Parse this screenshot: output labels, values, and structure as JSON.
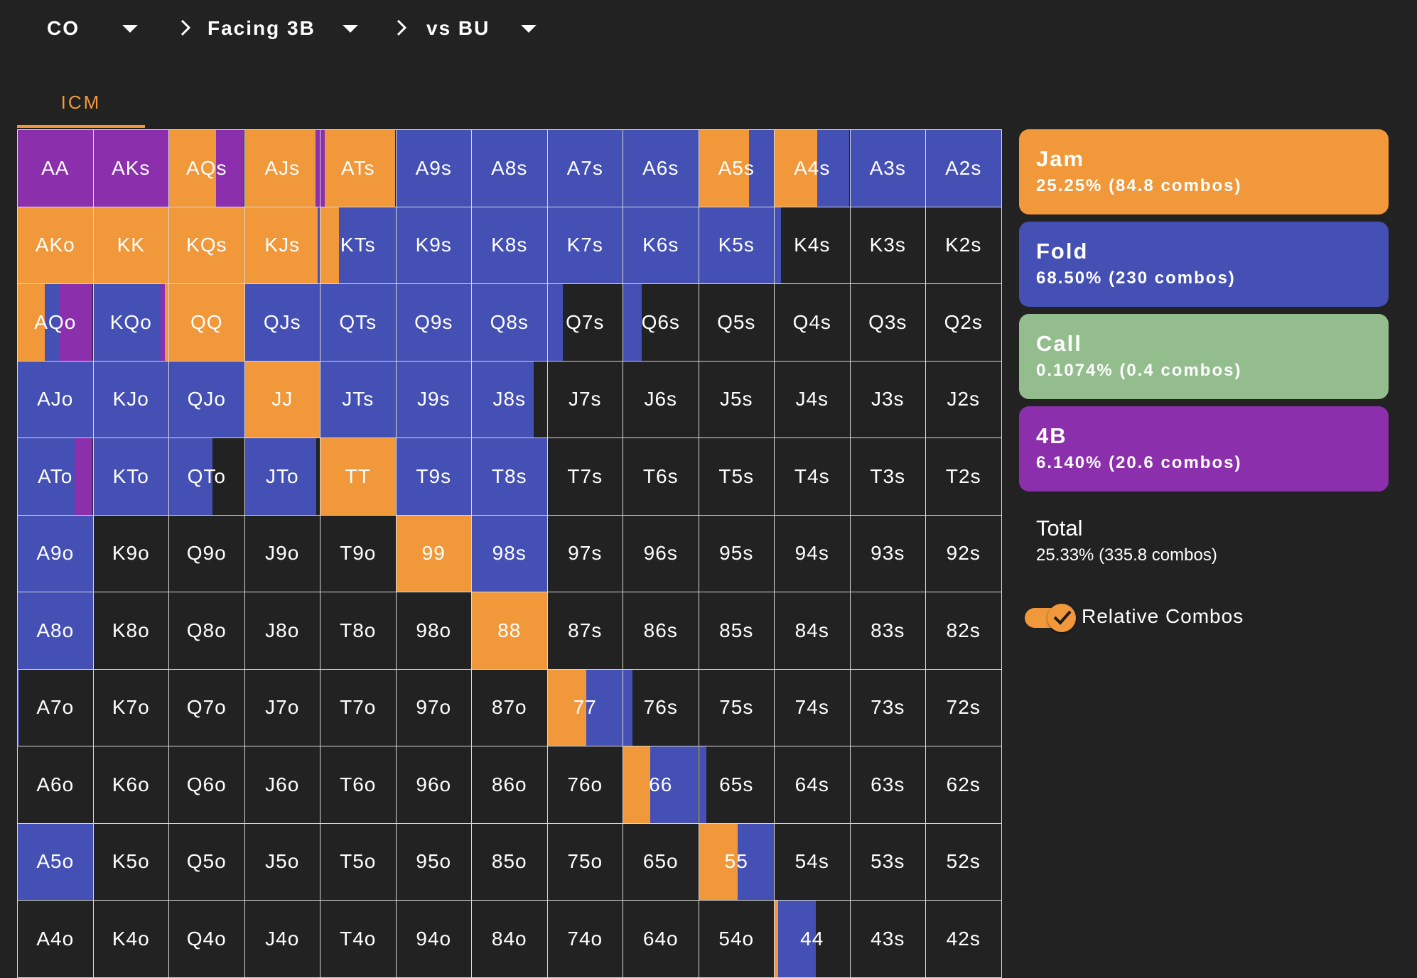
{
  "breadcrumb": [
    {
      "label": "CO"
    },
    {
      "label": "Facing 3B"
    },
    {
      "label": "vs BU"
    }
  ],
  "tabs": [
    {
      "label": "ICM",
      "active": true
    }
  ],
  "colors": {
    "jam": "#f0983a",
    "fold": "#4450b4",
    "call": "#94bd8e",
    "four_bet": "#8c2fad",
    "empty": "#222222"
  },
  "legend": [
    {
      "key": "jam",
      "name": "Jam",
      "stats": "25.25% (84.8 combos)"
    },
    {
      "key": "fold",
      "name": "Fold",
      "stats": "68.50% (230 combos)"
    },
    {
      "key": "call",
      "name": "Call",
      "stats": "0.1074% (0.4 combos)"
    },
    {
      "key": "four_bet",
      "name": "4B",
      "stats": "6.140% (20.6 combos)"
    }
  ],
  "total": {
    "label": "Total",
    "stats": "25.33% (335.8 combos)"
  },
  "toggle": {
    "label": "Relative Combos",
    "checked": true
  },
  "grid": {
    "rows": [
      [
        "AA",
        "AKs",
        "AQs",
        "AJs",
        "ATs",
        "A9s",
        "A8s",
        "A7s",
        "A6s",
        "A5s",
        "A4s",
        "A3s",
        "A2s"
      ],
      [
        "AKo",
        "KK",
        "KQs",
        "KJs",
        "KTs",
        "K9s",
        "K8s",
        "K7s",
        "K6s",
        "K5s",
        "K4s",
        "K3s",
        "K2s"
      ],
      [
        "AQo",
        "KQo",
        "QQ",
        "QJs",
        "QTs",
        "Q9s",
        "Q8s",
        "Q7s",
        "Q6s",
        "Q5s",
        "Q4s",
        "Q3s",
        "Q2s"
      ],
      [
        "AJo",
        "KJo",
        "QJo",
        "JJ",
        "JTs",
        "J9s",
        "J8s",
        "J7s",
        "J6s",
        "J5s",
        "J4s",
        "J3s",
        "J2s"
      ],
      [
        "ATo",
        "KTo",
        "QTo",
        "JTo",
        "TT",
        "T9s",
        "T8s",
        "T7s",
        "T6s",
        "T5s",
        "T4s",
        "T3s",
        "T2s"
      ],
      [
        "A9o",
        "K9o",
        "Q9o",
        "J9o",
        "T9o",
        "99",
        "98s",
        "97s",
        "96s",
        "95s",
        "94s",
        "93s",
        "92s"
      ],
      [
        "A8o",
        "K8o",
        "Q8o",
        "J8o",
        "T8o",
        "98o",
        "88",
        "87s",
        "86s",
        "85s",
        "84s",
        "83s",
        "82s"
      ],
      [
        "A7o",
        "K7o",
        "Q7o",
        "J7o",
        "T7o",
        "97o",
        "87o",
        "77",
        "76s",
        "75s",
        "74s",
        "73s",
        "72s"
      ],
      [
        "A6o",
        "K6o",
        "Q6o",
        "J6o",
        "T6o",
        "96o",
        "86o",
        "76o",
        "66",
        "65s",
        "64s",
        "63s",
        "62s"
      ],
      [
        "A5o",
        "K5o",
        "Q5o",
        "J5o",
        "T5o",
        "95o",
        "85o",
        "75o",
        "65o",
        "55",
        "54s",
        "53s",
        "52s"
      ],
      [
        "A4o",
        "K4o",
        "Q4o",
        "J4o",
        "T4o",
        "94o",
        "84o",
        "74o",
        "64o",
        "54o",
        "44",
        "43s",
        "42s"
      ]
    ],
    "frequencies": {
      "AA": [
        [
          "four_bet",
          1.0
        ]
      ],
      "AKs": [
        [
          "four_bet",
          1.0
        ]
      ],
      "AQs": [
        [
          "jam",
          0.63
        ],
        [
          "four_bet",
          0.37
        ]
      ],
      "AJs": [
        [
          "jam",
          0.94
        ],
        [
          "four_bet",
          0.06
        ]
      ],
      "ATs": [
        [
          "four_bet",
          0.06
        ],
        [
          "jam",
          0.94
        ]
      ],
      "A9s": [
        [
          "fold",
          1.0
        ]
      ],
      "A8s": [
        [
          "fold",
          1.0
        ]
      ],
      "A7s": [
        [
          "fold",
          1.0
        ]
      ],
      "A6s": [
        [
          "fold",
          1.0
        ]
      ],
      "A5s": [
        [
          "jam",
          0.67
        ],
        [
          "fold",
          0.33
        ]
      ],
      "A4s": [
        [
          "jam",
          0.57
        ],
        [
          "fold",
          0.43
        ]
      ],
      "A3s": [
        [
          "fold",
          1.0
        ]
      ],
      "A2s": [
        [
          "fold",
          1.0
        ]
      ],
      "AKo": [
        [
          "jam",
          1.0
        ]
      ],
      "KK": [
        [
          "jam",
          1.0
        ]
      ],
      "KQs": [
        [
          "jam",
          1.0
        ]
      ],
      "KJs": [
        [
          "jam",
          0.97
        ],
        [
          "fold",
          0.03
        ]
      ],
      "KTs": [
        [
          "jam",
          0.25
        ],
        [
          "fold",
          0.75
        ]
      ],
      "K9s": [
        [
          "fold",
          1.0
        ]
      ],
      "K8s": [
        [
          "fold",
          1.0
        ]
      ],
      "K7s": [
        [
          "fold",
          1.0
        ]
      ],
      "K6s": [
        [
          "fold",
          1.0
        ]
      ],
      "K5s": [
        [
          "fold",
          1.0
        ]
      ],
      "K4s": [
        [
          "fold",
          0.09
        ]
      ],
      "AQo": [
        [
          "jam",
          0.36
        ],
        [
          "fold",
          0.2
        ],
        [
          "four_bet",
          0.44
        ]
      ],
      "KQo": [
        [
          "fold",
          0.9
        ],
        [
          "four_bet",
          0.05
        ],
        [
          "jam",
          0.05
        ]
      ],
      "QQ": [
        [
          "jam",
          1.0
        ]
      ],
      "QJs": [
        [
          "fold",
          1.0
        ]
      ],
      "QTs": [
        [
          "fold",
          1.0
        ]
      ],
      "Q9s": [
        [
          "fold",
          1.0
        ]
      ],
      "Q8s": [
        [
          "fold",
          1.0
        ]
      ],
      "Q7s": [
        [
          "fold",
          0.2
        ]
      ],
      "Q6s": [
        [
          "fold",
          0.25
        ]
      ],
      "AJo": [
        [
          "fold",
          1.0
        ]
      ],
      "KJo": [
        [
          "fold",
          1.0
        ]
      ],
      "QJo": [
        [
          "fold",
          1.0
        ]
      ],
      "JJ": [
        [
          "jam",
          1.0
        ]
      ],
      "JTs": [
        [
          "fold",
          1.0
        ]
      ],
      "J9s": [
        [
          "fold",
          1.0
        ]
      ],
      "J8s": [
        [
          "fold",
          0.82
        ]
      ],
      "ATo": [
        [
          "fold",
          0.76
        ],
        [
          "four_bet",
          0.24
        ]
      ],
      "KTo": [
        [
          "fold",
          1.0
        ]
      ],
      "QTo": [
        [
          "fold",
          0.58
        ]
      ],
      "JTo": [
        [
          "fold",
          0.95
        ]
      ],
      "TT": [
        [
          "jam",
          1.0
        ]
      ],
      "T9s": [
        [
          "fold",
          1.0
        ]
      ],
      "T8s": [
        [
          "fold",
          1.0
        ]
      ],
      "A9o": [
        [
          "fold",
          1.0
        ]
      ],
      "99": [
        [
          "jam",
          1.0
        ]
      ],
      "98s": [
        [
          "fold",
          1.0
        ]
      ],
      "A8o": [
        [
          "fold",
          1.0
        ]
      ],
      "88": [
        [
          "jam",
          1.0
        ]
      ],
      "A7o": [
        [
          "fold",
          0.02
        ]
      ],
      "77": [
        [
          "jam",
          0.52
        ],
        [
          "fold",
          0.48
        ]
      ],
      "76s": [
        [
          "fold",
          0.12
        ]
      ],
      "66": [
        [
          "jam",
          0.36
        ],
        [
          "fold",
          0.64
        ]
      ],
      "65s": [
        [
          "fold",
          0.1
        ]
      ],
      "A5o": [
        [
          "fold",
          1.0
        ]
      ],
      "55": [
        [
          "jam",
          0.52
        ],
        [
          "fold",
          0.48
        ]
      ],
      "44": [
        [
          "jam",
          0.05
        ],
        [
          "fold",
          0.5
        ]
      ]
    }
  }
}
